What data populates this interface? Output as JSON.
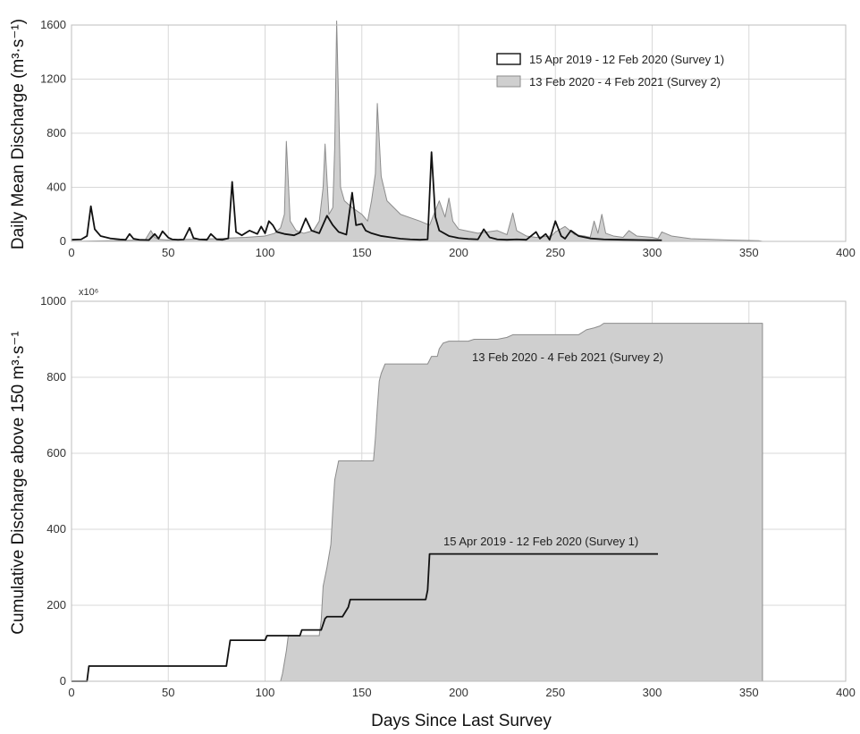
{
  "colors": {
    "survey1": "#111111",
    "survey2_fill": "#cfcfcf",
    "survey2_line": "#8c8c8c",
    "grid": "#d8d8d8"
  },
  "chart_data": [
    {
      "type": "line",
      "xlabel": "",
      "ylabel": "Daily Mean Discharge (m³·s⁻¹)",
      "xlim": [
        0,
        400
      ],
      "ylim": [
        0,
        1600
      ],
      "xticks": [
        0,
        50,
        100,
        150,
        200,
        250,
        300,
        350,
        400
      ],
      "yticks": [
        0,
        400,
        800,
        1200,
        1600
      ],
      "grid": true,
      "legend": {
        "position": "top-right",
        "entries": [
          "15 Apr 2019 - 12 Feb 2020 (Survey 1)",
          "13 Feb 2020 - 4 Feb 2021 (Survey 2)"
        ]
      },
      "series": [
        {
          "name": "15 Apr 2019 - 12 Feb 2020 (Survey 1)",
          "style": "line",
          "x": [
            0,
            5,
            8,
            10,
            12,
            15,
            20,
            25,
            28,
            30,
            32,
            35,
            40,
            43,
            45,
            47,
            50,
            52,
            55,
            58,
            61,
            63,
            66,
            70,
            72,
            75,
            78,
            81,
            83,
            85,
            88,
            92,
            96,
            98,
            100,
            102,
            104,
            106,
            110,
            115,
            118,
            121,
            124,
            128,
            132,
            135,
            138,
            142,
            145,
            147,
            150,
            152,
            155,
            160,
            165,
            170,
            175,
            180,
            184,
            186,
            188,
            190,
            195,
            200,
            205,
            210,
            213,
            216,
            220,
            225,
            230,
            235,
            240,
            242,
            245,
            247,
            250,
            253,
            255,
            258,
            262,
            268,
            275,
            285,
            295,
            305
          ],
          "y": [
            12,
            15,
            40,
            260,
            90,
            40,
            22,
            15,
            12,
            55,
            20,
            12,
            10,
            55,
            20,
            75,
            28,
            15,
            12,
            14,
            100,
            25,
            15,
            12,
            55,
            15,
            12,
            22,
            440,
            70,
            45,
            80,
            55,
            110,
            60,
            150,
            120,
            70,
            55,
            45,
            65,
            170,
            80,
            60,
            190,
            120,
            70,
            50,
            360,
            120,
            130,
            80,
            60,
            40,
            30,
            20,
            15,
            12,
            15,
            660,
            180,
            80,
            40,
            25,
            18,
            15,
            90,
            30,
            15,
            12,
            15,
            12,
            70,
            20,
            55,
            12,
            150,
            40,
            20,
            80,
            40,
            22,
            15,
            12,
            10,
            8
          ]
        },
        {
          "name": "13 Feb 2020 - 4 Feb 2021 (Survey 2)",
          "style": "area",
          "x": [
            0,
            20,
            38,
            41,
            43,
            45,
            50,
            60,
            75,
            90,
            100,
            105,
            108,
            110,
            111,
            113,
            116,
            120,
            125,
            128,
            130,
            131,
            133,
            135,
            136,
            137,
            139,
            141,
            145,
            150,
            153,
            155,
            157,
            158,
            159,
            160,
            163,
            170,
            180,
            185,
            190,
            193,
            195,
            197,
            200,
            210,
            220,
            225,
            228,
            230,
            235,
            240,
            248,
            250,
            255,
            260,
            265,
            268,
            270,
            272,
            274,
            276,
            280,
            285,
            288,
            292,
            300,
            303,
            305,
            310,
            320,
            340,
            355,
            357
          ],
          "y": [
            0,
            5,
            10,
            80,
            30,
            15,
            10,
            15,
            20,
            30,
            40,
            60,
            100,
            200,
            740,
            150,
            80,
            60,
            80,
            150,
            400,
            720,
            200,
            250,
            700,
            1630,
            400,
            300,
            250,
            200,
            150,
            300,
            500,
            1020,
            750,
            480,
            300,
            200,
            150,
            120,
            300,
            180,
            320,
            150,
            90,
            60,
            80,
            50,
            210,
            80,
            40,
            30,
            40,
            70,
            110,
            50,
            40,
            30,
            150,
            60,
            200,
            60,
            40,
            30,
            80,
            40,
            30,
            20,
            70,
            40,
            20,
            10,
            5,
            0
          ]
        }
      ]
    },
    {
      "type": "area",
      "xlabel": "Days Since Last Survey",
      "ylabel": "Cumulative Discharge above 150 m³·s⁻¹",
      "ytick_multiplier": "x10⁶",
      "xlim": [
        0,
        400
      ],
      "ylim": [
        0,
        1000
      ],
      "xticks": [
        0,
        50,
        100,
        150,
        200,
        250,
        300,
        350,
        400
      ],
      "yticks": [
        0,
        200,
        400,
        600,
        800,
        1000
      ],
      "grid": true,
      "annotations": [
        "13 Feb 2020 - 4 Feb 2021 (Survey 2)",
        "15 Apr 2019 - 12 Feb 2020 (Survey 1)"
      ],
      "series": [
        {
          "name": "15 Apr 2019 - 12 Feb 2020 (Survey 1)",
          "style": "step",
          "x": [
            0,
            8,
            9,
            80,
            82,
            100,
            101,
            118,
            119,
            129,
            130,
            131,
            132,
            140,
            143,
            144,
            183,
            184,
            185,
            303
          ],
          "y": [
            0,
            0,
            40,
            40,
            108,
            108,
            120,
            120,
            135,
            135,
            150,
            165,
            170,
            170,
            195,
            215,
            215,
            240,
            335,
            335
          ]
        },
        {
          "name": "13 Feb 2020 - 4 Feb 2021 (Survey 2)",
          "style": "area",
          "x": [
            0,
            80,
            108,
            109,
            111,
            112,
            128,
            129,
            130,
            132,
            134,
            135,
            136,
            138,
            145,
            156,
            157,
            158,
            159,
            160,
            162,
            165,
            184,
            186,
            189,
            190,
            192,
            195,
            205,
            208,
            210,
            220,
            225,
            228,
            230,
            240,
            262,
            266,
            270,
            273,
            275,
            357
          ],
          "y": [
            0,
            0,
            0,
            20,
            80,
            120,
            120,
            160,
            250,
            300,
            360,
            450,
            530,
            580,
            580,
            580,
            640,
            720,
            790,
            810,
            835,
            835,
            835,
            855,
            855,
            875,
            890,
            895,
            895,
            900,
            900,
            900,
            905,
            912,
            912,
            912,
            912,
            925,
            930,
            935,
            942,
            942
          ]
        }
      ]
    }
  ]
}
